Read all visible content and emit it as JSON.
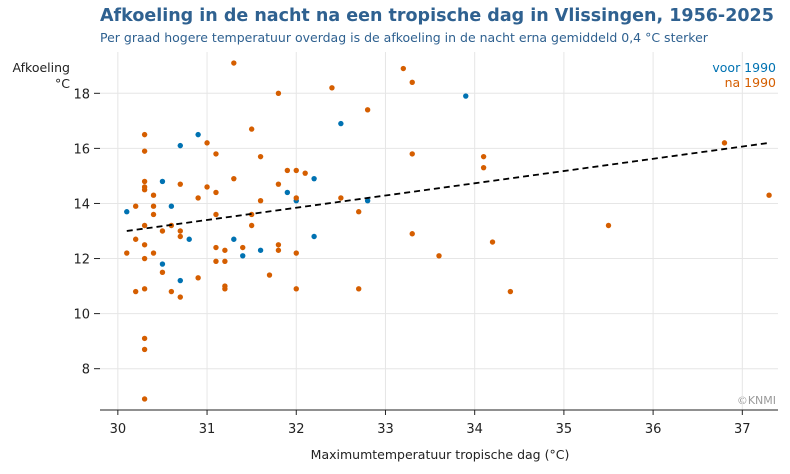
{
  "chart_data": {
    "type": "scatter",
    "title": "Afkoeling in de nacht na een tropische dag in Vlissingen, 1956-2025",
    "subtitle": "Per graad hogere temperatuur overdag is de afkoeling in de nacht erna gemiddeld 0,4 °C sterker",
    "xlabel": "Maximumtemperatuur tropische dag (°C)",
    "ylabel": [
      "Afkoeling",
      "°C"
    ],
    "xlim": [
      29.8,
      37.4
    ],
    "ylim": [
      6.5,
      19.5
    ],
    "xticks": [
      30,
      31,
      32,
      33,
      34,
      35,
      36,
      37
    ],
    "yticks": [
      8,
      10,
      12,
      14,
      16,
      18
    ],
    "grid": true,
    "legend_position": "top-right",
    "credit": "©KNMI",
    "series": [
      {
        "name": "voor 1990",
        "color": "#0072b2",
        "points": [
          [
            30.1,
            13.7
          ],
          [
            30.5,
            14.8
          ],
          [
            30.5,
            11.8
          ],
          [
            30.6,
            13.9
          ],
          [
            30.7,
            16.1
          ],
          [
            30.7,
            11.2
          ],
          [
            30.8,
            12.7
          ],
          [
            30.9,
            16.5
          ],
          [
            31.3,
            12.7
          ],
          [
            31.4,
            12.1
          ],
          [
            31.6,
            12.3
          ],
          [
            31.9,
            14.4
          ],
          [
            32.0,
            14.1
          ],
          [
            32.2,
            14.9
          ],
          [
            32.2,
            12.8
          ],
          [
            32.5,
            16.9
          ],
          [
            32.8,
            14.1
          ],
          [
            33.9,
            17.9
          ]
        ]
      },
      {
        "name": "na 1990",
        "color": "#d55e00",
        "points": [
          [
            30.1,
            12.2
          ],
          [
            30.2,
            13.9
          ],
          [
            30.2,
            12.7
          ],
          [
            30.2,
            10.8
          ],
          [
            30.3,
            16.5
          ],
          [
            30.3,
            15.9
          ],
          [
            30.3,
            14.8
          ],
          [
            30.3,
            14.6
          ],
          [
            30.3,
            14.5
          ],
          [
            30.3,
            13.2
          ],
          [
            30.3,
            12.5
          ],
          [
            30.3,
            12.0
          ],
          [
            30.3,
            10.9
          ],
          [
            30.3,
            9.1
          ],
          [
            30.3,
            8.7
          ],
          [
            30.3,
            6.9
          ],
          [
            30.4,
            14.3
          ],
          [
            30.4,
            13.9
          ],
          [
            30.4,
            13.6
          ],
          [
            30.4,
            12.2
          ],
          [
            30.5,
            13.0
          ],
          [
            30.5,
            11.5
          ],
          [
            30.6,
            13.2
          ],
          [
            30.6,
            10.8
          ],
          [
            30.7,
            14.7
          ],
          [
            30.7,
            13.0
          ],
          [
            30.7,
            12.8
          ],
          [
            30.7,
            10.6
          ],
          [
            30.9,
            14.2
          ],
          [
            30.9,
            11.3
          ],
          [
            31.0,
            16.2
          ],
          [
            31.0,
            14.6
          ],
          [
            31.1,
            15.8
          ],
          [
            31.1,
            14.4
          ],
          [
            31.1,
            13.6
          ],
          [
            31.1,
            12.4
          ],
          [
            31.1,
            11.9
          ],
          [
            31.2,
            12.3
          ],
          [
            31.2,
            11.9
          ],
          [
            31.2,
            11.0
          ],
          [
            31.2,
            10.9
          ],
          [
            31.3,
            19.1
          ],
          [
            31.3,
            14.9
          ],
          [
            31.4,
            12.4
          ],
          [
            31.5,
            16.7
          ],
          [
            31.5,
            13.6
          ],
          [
            31.5,
            13.2
          ],
          [
            31.6,
            15.7
          ],
          [
            31.6,
            14.1
          ],
          [
            31.7,
            11.4
          ],
          [
            31.8,
            18.0
          ],
          [
            31.8,
            14.7
          ],
          [
            31.8,
            12.5
          ],
          [
            31.8,
            12.3
          ],
          [
            31.9,
            15.2
          ],
          [
            32.0,
            15.2
          ],
          [
            32.0,
            14.2
          ],
          [
            32.0,
            12.2
          ],
          [
            32.0,
            10.9
          ],
          [
            32.1,
            15.1
          ],
          [
            32.4,
            18.2
          ],
          [
            32.5,
            14.2
          ],
          [
            32.7,
            13.7
          ],
          [
            32.7,
            10.9
          ],
          [
            32.8,
            17.4
          ],
          [
            33.2,
            18.9
          ],
          [
            33.3,
            18.4
          ],
          [
            33.3,
            15.8
          ],
          [
            33.3,
            12.9
          ],
          [
            33.6,
            12.1
          ],
          [
            34.1,
            15.7
          ],
          [
            34.1,
            15.3
          ],
          [
            34.2,
            12.6
          ],
          [
            34.4,
            10.8
          ],
          [
            35.5,
            13.2
          ],
          [
            36.8,
            16.2
          ],
          [
            37.3,
            14.3
          ]
        ]
      }
    ],
    "trendline": {
      "style": "dashed",
      "color": "#000000",
      "x": [
        30.1,
        37.3
      ],
      "y": [
        13.0,
        16.2
      ]
    }
  }
}
